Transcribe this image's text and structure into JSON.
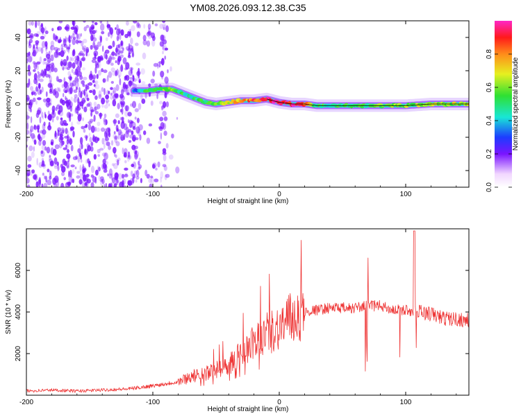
{
  "chart_data": [
    {
      "type": "heatmap",
      "title": "YM08.2026.093.12.38.C35",
      "xlabel": "Height of straight line (km)",
      "ylabel": "Frequency (Hz)",
      "xlim": [
        -200,
        150
      ],
      "ylim": [
        -50,
        50
      ],
      "x_ticks": [
        -200,
        -100,
        0,
        100
      ],
      "x_tick_labels": [
        "-200",
        "-100",
        "0",
        "100"
      ],
      "y_ticks": [
        -40,
        -20,
        0,
        20,
        40
      ],
      "y_tick_labels": [
        "-40",
        "-20",
        "0",
        "20",
        "40"
      ],
      "colorbar": {
        "label": "Normalized spectral amplitude",
        "range": [
          0,
          1
        ],
        "ticks": [
          0.0,
          0.2,
          0.4,
          0.6,
          0.8
        ],
        "tick_labels": [
          "0.0",
          "0.2",
          "0.4",
          "0.6",
          "0.8"
        ]
      },
      "ridge_trace": {
        "x": [
          -115,
          -105,
          -95,
          -85,
          -75,
          -65,
          -58,
          -50,
          -40,
          -30,
          -20,
          -10,
          0,
          10,
          20,
          30,
          40,
          60,
          80,
          100,
          120,
          150
        ],
        "y": [
          8,
          8,
          9,
          9,
          6,
          3,
          1,
          0,
          1,
          2,
          2,
          3,
          1,
          0,
          0,
          -1,
          -1,
          -1,
          -1,
          -1,
          0,
          0
        ],
        "amplitude": [
          0.35,
          0.5,
          0.6,
          0.55,
          0.5,
          0.5,
          0.55,
          0.6,
          0.7,
          0.75,
          0.85,
          0.9,
          0.95,
          0.95,
          0.9,
          0.5,
          0.5,
          0.5,
          0.55,
          0.6,
          0.6,
          0.65
        ]
      }
    },
    {
      "type": "line",
      "xlabel": "Height of straight line (km)",
      "ylabel": "SNR (10 * v/v)",
      "xlim": [
        -200,
        150
      ],
      "ylim": [
        0,
        8000
      ],
      "x_ticks": [
        -200,
        -100,
        0,
        100
      ],
      "x_tick_labels": [
        "-200",
        "-100",
        "0",
        "100"
      ],
      "y_ticks": [
        2000,
        4000,
        6000
      ],
      "y_tick_labels": [
        "2000",
        "4000",
        "6000"
      ],
      "series": [
        {
          "name": "SNR",
          "color": "#ee3333",
          "x": [
            -200,
            -180,
            -160,
            -140,
            -120,
            -100,
            -90,
            -80,
            -70,
            -60,
            -50,
            -40,
            -30,
            -20,
            -10,
            0,
            10,
            20,
            30,
            40,
            50,
            60,
            70,
            80,
            90,
            100,
            110,
            120,
            130,
            150
          ],
          "y": [
            200,
            250,
            200,
            250,
            300,
            450,
            550,
            650,
            900,
            1000,
            1200,
            1500,
            2000,
            2500,
            3000,
            3300,
            3700,
            4000,
            4100,
            4200,
            4200,
            4200,
            4300,
            4300,
            4100,
            4100,
            4000,
            3900,
            3700,
            3600
          ]
        }
      ]
    }
  ],
  "colors": {
    "ridge_low": "#7a14ff",
    "ridge_mid": "#19e6d6",
    "ridge_high": "#ff1a1a",
    "speckle": "#7a14ff",
    "snr_line": "#ee3333"
  }
}
